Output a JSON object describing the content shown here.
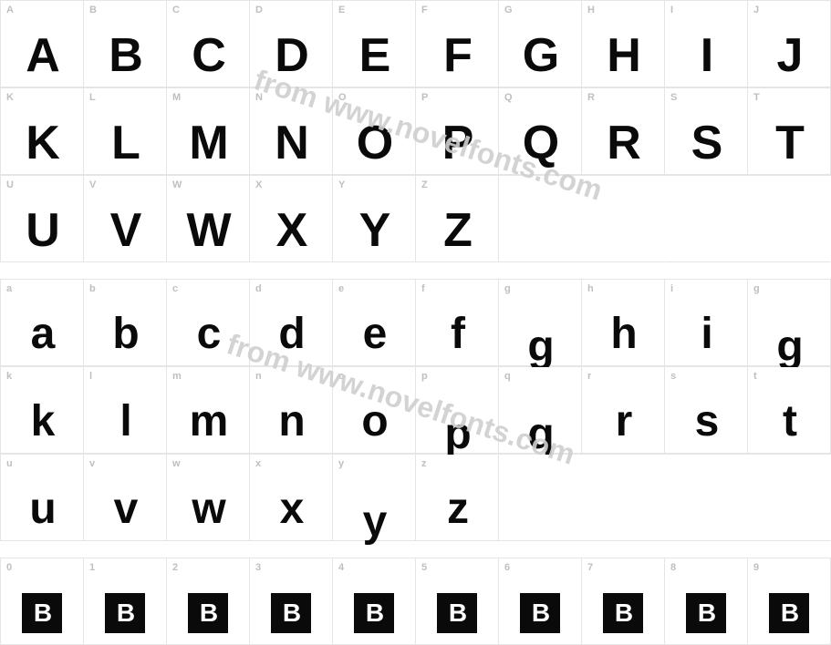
{
  "watermark_text": "from www.novelfonts.com",
  "colors": {
    "grid_border": "#e5e5e5",
    "cell_bg": "#ffffff",
    "label": "#bfbfbf",
    "glyph": "#0a0a0a",
    "watermark": "#cfcfcf",
    "eb_bg": "#0a0a0a",
    "eb_fg": "#ffffff"
  },
  "eb_glyph": "B",
  "rows": [
    {
      "type": "glyph",
      "cells": [
        {
          "label": "A",
          "glyph": "A"
        },
        {
          "label": "B",
          "glyph": "B"
        },
        {
          "label": "C",
          "glyph": "C"
        },
        {
          "label": "D",
          "glyph": "D"
        },
        {
          "label": "E",
          "glyph": "E"
        },
        {
          "label": "F",
          "glyph": "F"
        },
        {
          "label": "G",
          "glyph": "G"
        },
        {
          "label": "H",
          "glyph": "H"
        },
        {
          "label": "I",
          "glyph": "I"
        },
        {
          "label": "J",
          "glyph": "J"
        }
      ]
    },
    {
      "type": "glyph",
      "cells": [
        {
          "label": "K",
          "glyph": "K"
        },
        {
          "label": "L",
          "glyph": "L"
        },
        {
          "label": "M",
          "glyph": "M"
        },
        {
          "label": "N",
          "glyph": "N"
        },
        {
          "label": "O",
          "glyph": "O"
        },
        {
          "label": "P",
          "glyph": "P"
        },
        {
          "label": "Q",
          "glyph": "Q"
        },
        {
          "label": "R",
          "glyph": "R"
        },
        {
          "label": "S",
          "glyph": "S"
        },
        {
          "label": "T",
          "glyph": "T"
        }
      ]
    },
    {
      "type": "glyph",
      "cells": [
        {
          "label": "U",
          "glyph": "U"
        },
        {
          "label": "V",
          "glyph": "V"
        },
        {
          "label": "W",
          "glyph": "W"
        },
        {
          "label": "X",
          "glyph": "X"
        },
        {
          "label": "Y",
          "glyph": "Y"
        },
        {
          "label": "Z",
          "glyph": "Z"
        },
        {
          "empty": true
        },
        {
          "empty": true
        },
        {
          "empty": true
        },
        {
          "empty": true
        }
      ]
    },
    {
      "type": "spacer"
    },
    {
      "type": "glyph",
      "lower": true,
      "cells": [
        {
          "label": "a",
          "glyph": "a"
        },
        {
          "label": "b",
          "glyph": "b"
        },
        {
          "label": "c",
          "glyph": "c"
        },
        {
          "label": "d",
          "glyph": "d"
        },
        {
          "label": "e",
          "glyph": "e"
        },
        {
          "label": "f",
          "glyph": "f"
        },
        {
          "label": "g",
          "glyph": "g",
          "desc": true
        },
        {
          "label": "h",
          "glyph": "h"
        },
        {
          "label": "i",
          "glyph": "i"
        },
        {
          "label": "g",
          "glyph": "g",
          "desc": true
        }
      ]
    },
    {
      "type": "glyph",
      "lower": true,
      "cells": [
        {
          "label": "k",
          "glyph": "k"
        },
        {
          "label": "l",
          "glyph": "l"
        },
        {
          "label": "m",
          "glyph": "m"
        },
        {
          "label": "n",
          "glyph": "n"
        },
        {
          "label": "o",
          "glyph": "o"
        },
        {
          "label": "p",
          "glyph": "p",
          "desc": true
        },
        {
          "label": "q",
          "glyph": "q",
          "desc": true
        },
        {
          "label": "r",
          "glyph": "r"
        },
        {
          "label": "s",
          "glyph": "s"
        },
        {
          "label": "t",
          "glyph": "t"
        }
      ]
    },
    {
      "type": "glyph",
      "lower": true,
      "cells": [
        {
          "label": "u",
          "glyph": "u"
        },
        {
          "label": "v",
          "glyph": "v"
        },
        {
          "label": "w",
          "glyph": "w"
        },
        {
          "label": "x",
          "glyph": "x"
        },
        {
          "label": "y",
          "glyph": "y",
          "desc": true
        },
        {
          "label": "z",
          "glyph": "z"
        },
        {
          "empty": true
        },
        {
          "empty": true
        },
        {
          "empty": true
        },
        {
          "empty": true
        }
      ]
    },
    {
      "type": "spacer"
    },
    {
      "type": "eb",
      "cells": [
        {
          "label": "0"
        },
        {
          "label": "1"
        },
        {
          "label": "2"
        },
        {
          "label": "3"
        },
        {
          "label": "4"
        },
        {
          "label": "5"
        },
        {
          "label": "6"
        },
        {
          "label": "7"
        },
        {
          "label": "8"
        },
        {
          "label": "9"
        }
      ]
    }
  ]
}
